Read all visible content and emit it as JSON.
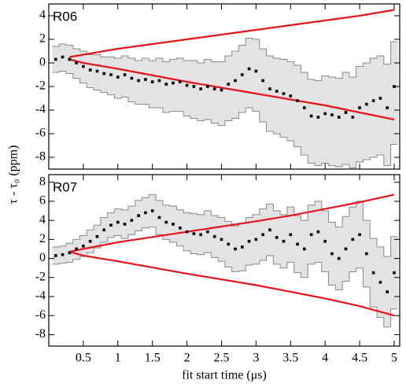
{
  "chart_data": [
    {
      "type": "scatter",
      "label": "R06",
      "ylabel": "τ - τ₀ (ppm)",
      "xlim": [
        0,
        5.08
      ],
      "xticks": [
        0.5,
        1,
        1.5,
        2,
        2.5,
        3,
        3.5,
        4,
        4.5,
        5
      ],
      "ylim": [
        -9,
        5
      ],
      "yticks": [
        -8,
        -6,
        -4,
        -2,
        0,
        2,
        4
      ],
      "x": [
        0.1,
        0.2,
        0.3,
        0.4,
        0.5,
        0.6,
        0.7,
        0.8,
        0.9,
        1.0,
        1.1,
        1.2,
        1.3,
        1.4,
        1.5,
        1.6,
        1.7,
        1.8,
        1.9,
        2.0,
        2.1,
        2.2,
        2.3,
        2.4,
        2.5,
        2.6,
        2.7,
        2.8,
        2.9,
        3.0,
        3.1,
        3.2,
        3.3,
        3.4,
        3.5,
        3.6,
        3.7,
        3.8,
        3.9,
        4.0,
        4.1,
        4.2,
        4.3,
        4.4,
        4.5,
        4.6,
        4.7,
        4.8,
        4.9,
        5.0
      ],
      "values": [
        0.3,
        0.5,
        0.3,
        0,
        -0.3,
        -0.6,
        -0.7,
        -0.9,
        -1.0,
        -1.2,
        -1.0,
        -1.3,
        -1.5,
        -1.4,
        -1.6,
        -1.5,
        -1.8,
        -1.7,
        -1.6,
        -1.9,
        -2.0,
        -2.2,
        -2.0,
        -2.2,
        -2.3,
        -1.8,
        -1.5,
        -1.0,
        -0.5,
        -0.7,
        -1.5,
        -2.2,
        -2.4,
        -2.6,
        -2.8,
        -3.2,
        -3.8,
        -4.5,
        -4.6,
        -4.3,
        -4.4,
        -4.6,
        -4.2,
        -4.6,
        -3.8,
        -3.5,
        -3.2,
        -3.0,
        -3.8,
        -2.0
      ],
      "color": "#000000",
      "band": {
        "color": "#e3e3e3",
        "edge": "#8a8a8a",
        "upper": [
          1.4,
          1.6,
          1.5,
          1.2,
          1.0,
          0.7,
          0.7,
          0.5,
          0.5,
          0.4,
          0.6,
          0.4,
          0.2,
          0.4,
          0.2,
          0.4,
          0.1,
          0.3,
          0.4,
          0.2,
          0.2,
          0.0,
          0.3,
          0.1,
          0.1,
          0.6,
          1.0,
          1.5,
          2.1,
          2.0,
          1.2,
          0.6,
          0.4,
          0.3,
          0.1,
          -0.2,
          -0.8,
          -1.4,
          -1.5,
          -1.1,
          -1.2,
          -1.3,
          -0.8,
          -1.2,
          -0.3,
          0,
          0.4,
          0.6,
          -0.1,
          1.8
        ],
        "lower": [
          -0.8,
          -0.7,
          -0.9,
          -1.3,
          -1.7,
          -2.1,
          -2.3,
          -2.5,
          -2.7,
          -3.0,
          -2.9,
          -3.3,
          -3.5,
          -3.5,
          -3.8,
          -3.8,
          -4.2,
          -4.1,
          -4.1,
          -4.5,
          -4.7,
          -4.9,
          -4.8,
          -5.1,
          -5.3,
          -4.9,
          -4.7,
          -4.2,
          -3.8,
          -4.1,
          -5.0,
          -5.8,
          -6.0,
          -6.3,
          -6.6,
          -7.1,
          -7.8,
          -8.5,
          -8.7,
          -8.5,
          -8.7,
          -8.8,
          -8.6,
          -8.9,
          -8.4,
          -8.2,
          -8.0,
          -7.8,
          -8.7,
          -6.9
        ]
      },
      "curves": [
        {
          "color": "#e8141c",
          "x": [
            0.3,
            0.5,
            1,
            1.5,
            2,
            2.5,
            3,
            3.5,
            4,
            4.5,
            5
          ],
          "values": [
            0.5,
            0.7,
            1.2,
            1.6,
            2.0,
            2.4,
            2.8,
            3.2,
            3.6,
            4.0,
            4.5
          ]
        },
        {
          "color": "#e8141c",
          "x": [
            0.3,
            0.5,
            1,
            1.5,
            2,
            2.5,
            3,
            3.5,
            4,
            4.5,
            5
          ],
          "values": [
            0.3,
            0,
            -0.5,
            -1.05,
            -1.6,
            -2.1,
            -2.6,
            -3.1,
            -3.6,
            -4.2,
            -4.8
          ]
        }
      ]
    },
    {
      "type": "scatter",
      "label": "R07",
      "xlabel": "fit start time (μs)",
      "xlim": [
        0,
        5.08
      ],
      "xticks": [
        0.5,
        1,
        1.5,
        2,
        2.5,
        3,
        3.5,
        4,
        4.5,
        5
      ],
      "ylim": [
        -9.2,
        8.8
      ],
      "yticks": [
        -8,
        -6,
        -4,
        -2,
        0,
        2,
        4,
        6,
        8
      ],
      "x": [
        0.1,
        0.2,
        0.3,
        0.4,
        0.5,
        0.6,
        0.7,
        0.8,
        0.9,
        1.0,
        1.1,
        1.2,
        1.3,
        1.4,
        1.5,
        1.6,
        1.7,
        1.8,
        1.9,
        2.0,
        2.1,
        2.2,
        2.3,
        2.4,
        2.5,
        2.6,
        2.7,
        2.8,
        2.9,
        3.0,
        3.1,
        3.2,
        3.3,
        3.4,
        3.5,
        3.6,
        3.7,
        3.8,
        3.9,
        4.0,
        4.1,
        4.2,
        4.3,
        4.4,
        4.5,
        4.6,
        4.7,
        4.8,
        4.9,
        5.0
      ],
      "values": [
        0.3,
        0.4,
        0.6,
        1.0,
        1.3,
        1.8,
        2.3,
        3.0,
        3.5,
        3.8,
        3.6,
        4.0,
        4.5,
        4.8,
        5.0,
        4.3,
        3.8,
        3.6,
        3.2,
        2.8,
        2.6,
        2.5,
        2.8,
        2.3,
        2.0,
        1.5,
        1.0,
        1.2,
        1.8,
        2.0,
        2.5,
        3.0,
        2.2,
        1.8,
        2.5,
        1.5,
        1.0,
        2.5,
        2.8,
        1.8,
        0.5,
        0,
        1.0,
        2.0,
        2.5,
        0.5,
        -1.5,
        -2.5,
        -3.5,
        -1.5
      ],
      "color": "#000000",
      "band": {
        "color": "#e3e3e3",
        "edge": "#8a8a8a",
        "upper": [
          1.2,
          1.3,
          1.6,
          2.0,
          2.4,
          3.0,
          3.5,
          4.3,
          4.8,
          5.2,
          5.1,
          5.5,
          6.1,
          6.4,
          6.7,
          6.1,
          5.6,
          5.5,
          5.1,
          4.8,
          4.7,
          4.6,
          5.0,
          4.5,
          4.3,
          3.9,
          3.4,
          3.7,
          4.3,
          4.6,
          5.2,
          5.7,
          5.0,
          4.6,
          5.4,
          4.5,
          4.0,
          5.6,
          6.0,
          5.0,
          3.8,
          3.3,
          4.4,
          5.4,
          6.0,
          4.0,
          2.1,
          1.2,
          0.2,
          2.3
        ],
        "lower": [
          -0.6,
          -0.5,
          -0.4,
          -0.1,
          0.2,
          0.6,
          1.1,
          1.7,
          2.2,
          2.4,
          2.1,
          2.5,
          2.9,
          3.2,
          3.3,
          2.5,
          2.0,
          1.7,
          1.3,
          0.8,
          0.5,
          0.4,
          0.6,
          0.1,
          -0.3,
          -0.9,
          -1.4,
          -1.3,
          -0.7,
          -0.6,
          -0.2,
          0.3,
          -0.6,
          -1.0,
          -0.4,
          -1.5,
          -2.0,
          -0.6,
          -0.4,
          -1.4,
          -2.8,
          -3.3,
          -2.4,
          -1.4,
          -1.0,
          -3.0,
          -5.1,
          -6.2,
          -7.2,
          -5.3
        ]
      },
      "curves": [
        {
          "color": "#e8141c",
          "x": [
            0.3,
            0.5,
            1,
            1.5,
            2,
            2.5,
            3,
            3.5,
            4,
            4.5,
            5
          ],
          "values": [
            0.7,
            1.0,
            1.7,
            2.25,
            2.8,
            3.35,
            3.9,
            4.5,
            5.2,
            5.9,
            6.7
          ]
        },
        {
          "color": "#e8141c",
          "x": [
            0.3,
            0.5,
            1,
            1.5,
            2,
            2.5,
            3,
            3.5,
            4,
            4.5,
            5
          ],
          "values": [
            0.7,
            0.3,
            -0.3,
            -0.95,
            -1.6,
            -2.2,
            -2.8,
            -3.5,
            -4.2,
            -5.0,
            -6.0
          ]
        }
      ]
    }
  ]
}
